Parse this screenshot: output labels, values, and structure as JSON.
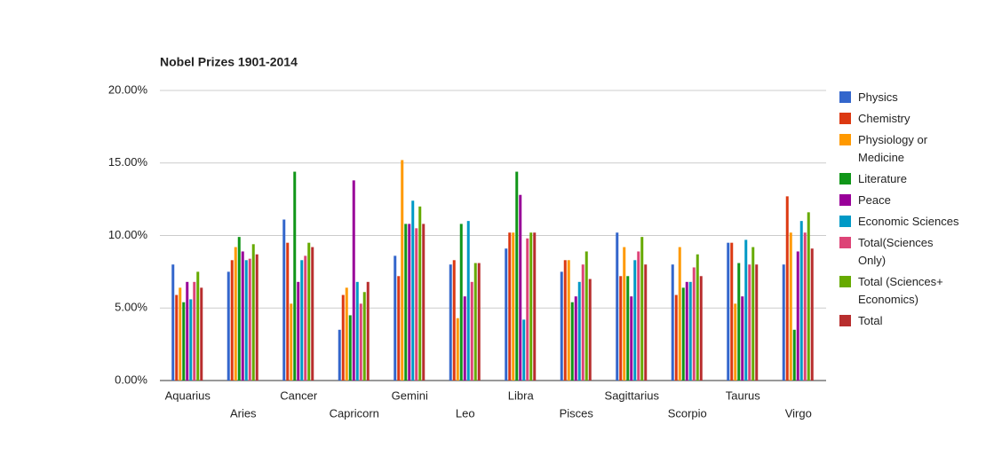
{
  "chart_data": {
    "type": "bar",
    "title": "Nobel Prizes 1901-2014",
    "categories": [
      "Aquarius",
      "Aries",
      "Cancer",
      "Capricorn",
      "Gemini",
      "Leo",
      "Libra",
      "Pisces",
      "Sagittarius",
      "Scorpio",
      "Taurus",
      "Virgo"
    ],
    "series": [
      {
        "name": "Physics",
        "color": "#3366cc",
        "values": [
          8.0,
          7.5,
          11.1,
          3.5,
          8.6,
          8.0,
          9.1,
          7.5,
          10.2,
          8.0,
          9.5,
          8.0
        ]
      },
      {
        "name": "Chemistry",
        "color": "#dc3912",
        "values": [
          5.9,
          8.3,
          9.5,
          5.9,
          7.2,
          8.3,
          10.2,
          8.3,
          7.2,
          5.9,
          9.5,
          12.7
        ]
      },
      {
        "name": "Physiology or Medicine",
        "color": "#ff9900",
        "values": [
          6.4,
          9.2,
          5.3,
          6.4,
          15.2,
          4.3,
          10.2,
          8.3,
          9.2,
          9.2,
          5.3,
          10.2
        ]
      },
      {
        "name": "Literature",
        "color": "#109618",
        "values": [
          5.4,
          9.9,
          14.4,
          4.5,
          10.8,
          10.8,
          14.4,
          5.4,
          7.2,
          6.4,
          8.1,
          3.5
        ]
      },
      {
        "name": "Peace",
        "color": "#990099",
        "values": [
          6.8,
          8.9,
          6.8,
          13.8,
          10.8,
          5.8,
          12.8,
          5.8,
          5.8,
          6.8,
          5.8,
          8.9
        ]
      },
      {
        "name": "Economic Sciences",
        "color": "#0099c6",
        "values": [
          5.6,
          8.3,
          8.3,
          6.8,
          12.4,
          11.0,
          4.2,
          6.8,
          8.3,
          6.8,
          9.7,
          11.0
        ]
      },
      {
        "name": "Total(Sciences Only)",
        "color": "#dd4477",
        "values": [
          6.8,
          8.4,
          8.6,
          5.3,
          10.5,
          6.8,
          9.8,
          8.0,
          8.9,
          7.8,
          8.0,
          10.2
        ]
      },
      {
        "name": "Total (Sciences+ Economics)",
        "color": "#66aa00",
        "values": [
          7.5,
          9.4,
          9.5,
          6.1,
          12.0,
          8.1,
          10.2,
          8.9,
          9.9,
          8.7,
          9.2,
          11.6
        ]
      },
      {
        "name": "Total",
        "color": "#b82e2e",
        "values": [
          6.4,
          8.7,
          9.2,
          6.8,
          10.8,
          8.1,
          10.2,
          7.0,
          8.0,
          7.2,
          8.0,
          9.1
        ]
      }
    ],
    "ylim": [
      0,
      20
    ],
    "yticks": [
      {
        "value": 0,
        "label": "0.00%"
      },
      {
        "value": 5,
        "label": "5.00%"
      },
      {
        "value": 10,
        "label": "10.00%"
      },
      {
        "value": 15,
        "label": "15.00%"
      },
      {
        "value": 20,
        "label": "20.00%"
      }
    ],
    "grid": true,
    "legend": "right"
  }
}
